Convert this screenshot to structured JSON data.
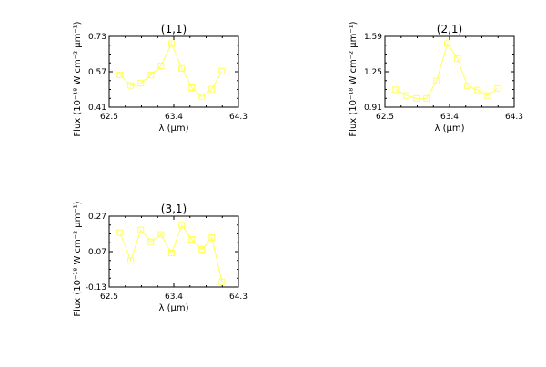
{
  "chart_data": [
    {
      "type": "line",
      "title": "(1,1)",
      "xlabel": "λ (μm)",
      "ylabel": "Flux (10⁻¹⁸ W cm⁻² μm⁻¹)",
      "xlim": [
        62.5,
        64.3
      ],
      "ylim": [
        0.41,
        0.73
      ],
      "xticks": [
        "62.5",
        "63.4",
        "64.3"
      ],
      "yticks": [
        "0.41",
        "0.57",
        "0.73"
      ],
      "grid": false,
      "marker": "square",
      "color": "#ffff55",
      "x": [
        62.65,
        62.8,
        62.94,
        63.08,
        63.22,
        63.37,
        63.51,
        63.65,
        63.79,
        63.93,
        64.07
      ],
      "y": [
        0.556,
        0.508,
        0.518,
        0.555,
        0.597,
        0.697,
        0.585,
        0.498,
        0.458,
        0.492,
        0.573
      ]
    },
    {
      "type": "line",
      "title": "(2,1)",
      "xlabel": "λ (μm)",
      "ylabel": "Flux (10⁻¹⁸ W cm⁻² μm⁻¹)",
      "xlim": [
        62.5,
        64.3
      ],
      "ylim": [
        0.91,
        1.59
      ],
      "xticks": [
        "62.5",
        "63.4",
        "64.3"
      ],
      "yticks": [
        "0.91",
        "1.25",
        "1.59"
      ],
      "grid": false,
      "marker": "square",
      "color": "#ffff55",
      "x": [
        62.65,
        62.8,
        62.94,
        63.08,
        63.22,
        63.37,
        63.51,
        63.65,
        63.79,
        63.93,
        64.07
      ],
      "y": [
        1.077,
        1.022,
        0.994,
        0.994,
        1.163,
        1.521,
        1.376,
        1.113,
        1.075,
        1.022,
        1.09
      ]
    },
    {
      "type": "line",
      "title": "(3,1)",
      "xlabel": "λ (μm)",
      "ylabel": "Flux (10⁻¹⁸ W cm⁻² μm⁻¹)",
      "xlim": [
        62.5,
        64.3
      ],
      "ylim": [
        -0.13,
        0.27
      ],
      "xticks": [
        "62.5",
        "63.4",
        "64.3"
      ],
      "yticks": [
        "0.27",
        "0.07",
        "-0.13"
      ],
      "grid": false,
      "marker": "square",
      "color": "#ffff55",
      "x": [
        62.65,
        62.8,
        62.94,
        63.08,
        63.22,
        63.37,
        63.51,
        63.65,
        63.79,
        63.93,
        64.07
      ],
      "y": [
        0.177,
        0.02,
        0.192,
        0.126,
        0.167,
        0.062,
        0.219,
        0.139,
        0.083,
        0.149,
        -0.1
      ]
    }
  ]
}
